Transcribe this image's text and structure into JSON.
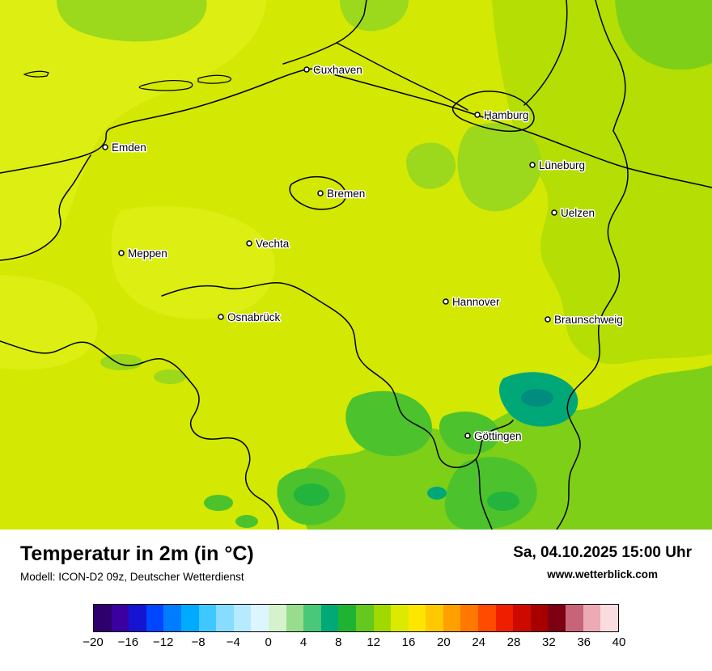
{
  "map": {
    "cities": [
      {
        "name": "Cuxhaven"
      },
      {
        "name": "Hamburg"
      },
      {
        "name": "Emden"
      },
      {
        "name": "Lüneburg"
      },
      {
        "name": "Bremen"
      },
      {
        "name": "Uelzen"
      },
      {
        "name": "Vechta"
      },
      {
        "name": "Meppen"
      },
      {
        "name": "Hannover"
      },
      {
        "name": "Osnabrück"
      },
      {
        "name": "Braunschweig"
      },
      {
        "name": "Göttingen"
      }
    ],
    "shades": {
      "base_yellow_green": "#d3e803",
      "light_yellow": "#dcee12",
      "green_12_14": "#a0d800",
      "green_10_12": "#64c81e",
      "green_8_10": "#1eb432",
      "teal_6_8": "#00a878"
    }
  },
  "footer": {
    "title": "Temperatur in 2m (in °C)",
    "model": "Modell: ICON-D2 09z, Deutscher Wetterdienst",
    "timestamp": "Sa, 04.10.2025 15:00 Uhr",
    "website": "www.wetterblick.com"
  },
  "colorbar": {
    "min": -20,
    "max": 40,
    "step": 2,
    "colors": [
      "#2e006e",
      "#3c00a0",
      "#1414d2",
      "#0046ff",
      "#007dff",
      "#00aaff",
      "#3fc8ff",
      "#87dcff",
      "#b6ebff",
      "#ddf5ff",
      "#d6f2cc",
      "#98dc8e",
      "#48c878",
      "#00aa78",
      "#1eb432",
      "#64c81e",
      "#a0d800",
      "#dcea00",
      "#ffe600",
      "#ffc800",
      "#ffa000",
      "#ff7800",
      "#ff4b00",
      "#f01e00",
      "#cd0a00",
      "#a80000",
      "#7d0012",
      "#c86478",
      "#ebaab4",
      "#fadce0"
    ],
    "ticks": [
      "−20",
      "−16",
      "−12",
      "−8",
      "−4",
      "0",
      "4",
      "8",
      "12",
      "16",
      "20",
      "24",
      "28",
      "32",
      "36",
      "40"
    ]
  }
}
